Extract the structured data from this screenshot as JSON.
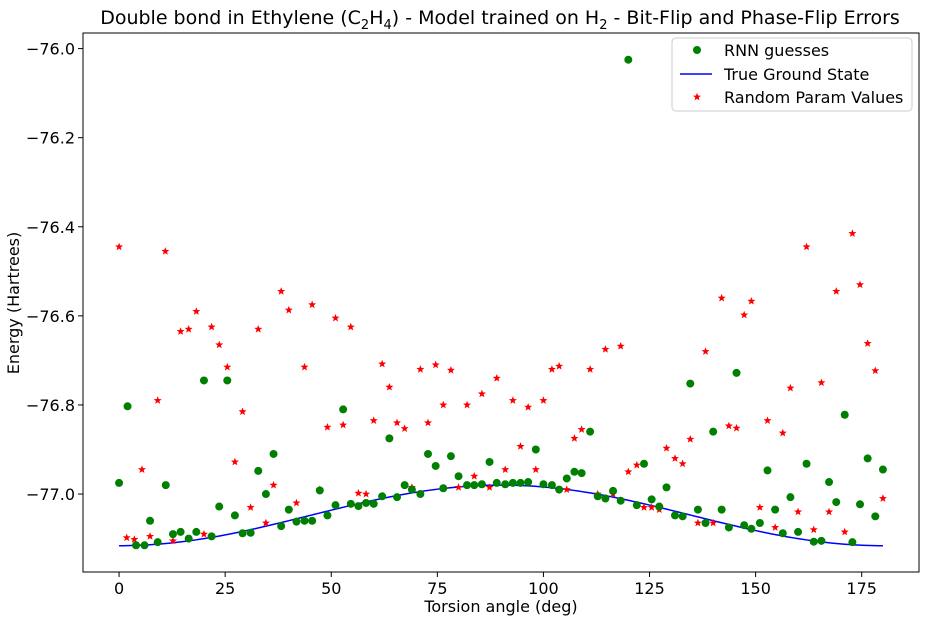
{
  "chart_data": {
    "type": "scatter",
    "title_parts": {
      "pre": "Double bond in Ethylene (C",
      "sub1": "2",
      "mid1": "H",
      "sub2": "4",
      "mid2": ") - Model trained on H",
      "sub3": "2",
      "post": " - Bit-Flip and Phase-Flip Errors"
    },
    "xlabel": "Torsion angle (deg)",
    "ylabel": "Energy (Hartrees)",
    "xlim": [
      -8.5,
      188.5
    ],
    "ylim": [
      -77.175,
      -75.965
    ],
    "x_ticks": [
      0,
      25,
      50,
      75,
      100,
      125,
      150,
      175
    ],
    "x_tick_labels": [
      "0",
      "25",
      "50",
      "75",
      "100",
      "125",
      "150",
      "175"
    ],
    "y_ticks": [
      -77.0,
      -76.8,
      -76.6,
      -76.4,
      -76.2,
      -76.0
    ],
    "y_tick_labels": [
      "−77.0",
      "−76.8",
      "−76.6",
      "−76.4",
      "−76.2",
      "−76.0"
    ],
    "grid": false,
    "legend_position": "top-right",
    "colors": {
      "rnn": "#008000",
      "true": "#0000ff",
      "random": "#ff0000"
    },
    "series": [
      {
        "name": "RNN guesses",
        "marker": "circle",
        "points": [
          [
            0,
            -76.975
          ],
          [
            2,
            -76.803
          ],
          [
            4,
            -77.115
          ],
          [
            6,
            -77.115
          ],
          [
            7.3,
            -77.06
          ],
          [
            9.1,
            -77.108
          ],
          [
            11,
            -76.98
          ],
          [
            12.7,
            -77.09
          ],
          [
            14.5,
            -77.085
          ],
          [
            16.4,
            -77.1
          ],
          [
            18.2,
            -77.085
          ],
          [
            20,
            -76.745
          ],
          [
            21.8,
            -77.095
          ],
          [
            23.6,
            -77.028
          ],
          [
            25.5,
            -76.745
          ],
          [
            27.3,
            -77.048
          ],
          [
            29.1,
            -77.088
          ],
          [
            31,
            -77.087
          ],
          [
            32.8,
            -76.948
          ],
          [
            34.6,
            -77.0
          ],
          [
            36.4,
            -76.91
          ],
          [
            38.2,
            -77.072
          ],
          [
            40,
            -77.035
          ],
          [
            41.8,
            -77.062
          ],
          [
            43.7,
            -77.06
          ],
          [
            45.5,
            -77.06
          ],
          [
            47.3,
            -76.992
          ],
          [
            49.1,
            -77.048
          ],
          [
            51,
            -77.025
          ],
          [
            52.8,
            -76.81
          ],
          [
            54.6,
            -77.022
          ],
          [
            56.4,
            -77.027
          ],
          [
            58.2,
            -77.02
          ],
          [
            60,
            -77.022
          ],
          [
            62,
            -77.005
          ],
          [
            63.7,
            -76.875
          ],
          [
            65.5,
            -77.007
          ],
          [
            67.3,
            -76.98
          ],
          [
            69,
            -76.99
          ],
          [
            71,
            -77.0
          ],
          [
            72.8,
            -76.91
          ],
          [
            74.6,
            -76.937
          ],
          [
            76.4,
            -76.987
          ],
          [
            78.2,
            -76.915
          ],
          [
            80,
            -76.96
          ],
          [
            82,
            -76.98
          ],
          [
            83.7,
            -76.98
          ],
          [
            85.5,
            -76.978
          ],
          [
            87.3,
            -76.928
          ],
          [
            89,
            -76.975
          ],
          [
            91,
            -76.978
          ],
          [
            92.8,
            -76.975
          ],
          [
            94.6,
            -76.975
          ],
          [
            96.4,
            -76.973
          ],
          [
            98.2,
            -76.9
          ],
          [
            100,
            -76.978
          ],
          [
            102,
            -76.98
          ],
          [
            103.7,
            -76.99
          ],
          [
            105.5,
            -76.965
          ],
          [
            107.3,
            -76.95
          ],
          [
            109,
            -76.953
          ],
          [
            111,
            -76.86
          ],
          [
            112.8,
            -77.005
          ],
          [
            114.6,
            -77.01
          ],
          [
            116.4,
            -76.993
          ],
          [
            118.2,
            -77.015
          ],
          [
            120,
            -76.025
          ],
          [
            122,
            -77.025
          ],
          [
            123.7,
            -76.932
          ],
          [
            125.5,
            -77.012
          ],
          [
            127.3,
            -77.028
          ],
          [
            129,
            -76.985
          ],
          [
            131,
            -77.048
          ],
          [
            132.8,
            -77.05
          ],
          [
            134.6,
            -76.752
          ],
          [
            136.4,
            -77.035
          ],
          [
            138.2,
            -77.065
          ],
          [
            140,
            -76.86
          ],
          [
            142,
            -77.035
          ],
          [
            143.7,
            -77.075
          ],
          [
            145.5,
            -76.728
          ],
          [
            147.3,
            -77.07
          ],
          [
            149,
            -77.078
          ],
          [
            151,
            -77.065
          ],
          [
            152.8,
            -76.947
          ],
          [
            154.6,
            -77.035
          ],
          [
            156.4,
            -77.088
          ],
          [
            158.2,
            -77.007
          ],
          [
            160,
            -77.085
          ],
          [
            162,
            -76.932
          ],
          [
            163.7,
            -77.107
          ],
          [
            165.5,
            -77.105
          ],
          [
            167.3,
            -76.973
          ],
          [
            169,
            -77.018
          ],
          [
            171,
            -76.822
          ],
          [
            172.8,
            -77.108
          ],
          [
            174.6,
            -77.023
          ],
          [
            176.4,
            -76.92
          ],
          [
            178.2,
            -77.05
          ],
          [
            180,
            -76.945
          ]
        ]
      },
      {
        "name": "True Ground State",
        "marker": "line",
        "curve": {
          "form": "E = a - b*cos(2*theta)",
          "a": -77.048,
          "b": 0.068,
          "x_range": [
            0,
            180
          ]
        }
      },
      {
        "name": "Random Param Values",
        "marker": "star",
        "points": [
          [
            0,
            -76.445
          ],
          [
            1.8,
            -77.098
          ],
          [
            3.6,
            -77.102
          ],
          [
            5.4,
            -76.945
          ],
          [
            7.3,
            -77.095
          ],
          [
            9.1,
            -76.79
          ],
          [
            10.9,
            -76.455
          ],
          [
            12.7,
            -77.105
          ],
          [
            14.5,
            -76.635
          ],
          [
            16.4,
            -76.63
          ],
          [
            18.2,
            -76.59
          ],
          [
            20,
            -77.09
          ],
          [
            21.8,
            -76.625
          ],
          [
            23.6,
            -76.665
          ],
          [
            25.5,
            -76.715
          ],
          [
            27.3,
            -76.928
          ],
          [
            29.1,
            -76.815
          ],
          [
            31,
            -77.03
          ],
          [
            32.8,
            -76.63
          ],
          [
            34.6,
            -77.065
          ],
          [
            36.4,
            -76.98
          ],
          [
            38.2,
            -76.545
          ],
          [
            40,
            -76.587
          ],
          [
            41.8,
            -77.02
          ],
          [
            43.7,
            -76.715
          ],
          [
            45.5,
            -76.575
          ],
          [
            47.3,
            -76.99
          ],
          [
            49.1,
            -76.85
          ],
          [
            51,
            -76.605
          ],
          [
            52.8,
            -76.845
          ],
          [
            54.6,
            -76.625
          ],
          [
            56.4,
            -76.998
          ],
          [
            58.2,
            -77.0
          ],
          [
            60,
            -76.835
          ],
          [
            62,
            -76.708
          ],
          [
            63.7,
            -76.76
          ],
          [
            65.5,
            -76.84
          ],
          [
            67.3,
            -76.853
          ],
          [
            69,
            -76.985
          ],
          [
            71,
            -76.72
          ],
          [
            72.8,
            -76.84
          ],
          [
            74.6,
            -76.71
          ],
          [
            76.4,
            -76.8
          ],
          [
            78.2,
            -76.722
          ],
          [
            80,
            -76.985
          ],
          [
            82,
            -76.8
          ],
          [
            83.7,
            -76.96
          ],
          [
            85.5,
            -76.775
          ],
          [
            87.3,
            -76.985
          ],
          [
            89,
            -76.74
          ],
          [
            91,
            -76.945
          ],
          [
            92.8,
            -76.79
          ],
          [
            94.6,
            -76.893
          ],
          [
            96.4,
            -76.805
          ],
          [
            98.2,
            -76.945
          ],
          [
            100,
            -76.79
          ],
          [
            102,
            -76.72
          ],
          [
            103.7,
            -76.713
          ],
          [
            105.5,
            -76.99
          ],
          [
            107.3,
            -76.875
          ],
          [
            109,
            -76.855
          ],
          [
            111,
            -76.72
          ],
          [
            112.8,
            -77.0
          ],
          [
            114.6,
            -76.675
          ],
          [
            116.4,
            -77.0
          ],
          [
            118.2,
            -76.668
          ],
          [
            120,
            -76.95
          ],
          [
            122,
            -76.935
          ],
          [
            123.7,
            -77.03
          ],
          [
            125.5,
            -77.03
          ],
          [
            127.3,
            -77.035
          ],
          [
            129,
            -76.897
          ],
          [
            131,
            -76.92
          ],
          [
            132.8,
            -76.932
          ],
          [
            134.6,
            -76.877
          ],
          [
            136.4,
            -77.065
          ],
          [
            138.2,
            -76.68
          ],
          [
            140,
            -77.065
          ],
          [
            142,
            -76.56
          ],
          [
            143.7,
            -76.847
          ],
          [
            145.5,
            -76.852
          ],
          [
            147.3,
            -76.598
          ],
          [
            149,
            -76.567
          ],
          [
            151,
            -77.03
          ],
          [
            152.8,
            -76.835
          ],
          [
            154.6,
            -77.075
          ],
          [
            156.4,
            -76.863
          ],
          [
            158.2,
            -76.762
          ],
          [
            160,
            -77.04
          ],
          [
            162,
            -76.445
          ],
          [
            163.7,
            -77.08
          ],
          [
            165.5,
            -76.75
          ],
          [
            167.3,
            -77.04
          ],
          [
            169,
            -76.545
          ],
          [
            171,
            -77.085
          ],
          [
            172.8,
            -76.415
          ],
          [
            174.6,
            -76.53
          ],
          [
            176.4,
            -76.662
          ],
          [
            178.2,
            -76.723
          ],
          [
            180,
            -77.01
          ]
        ]
      }
    ]
  }
}
